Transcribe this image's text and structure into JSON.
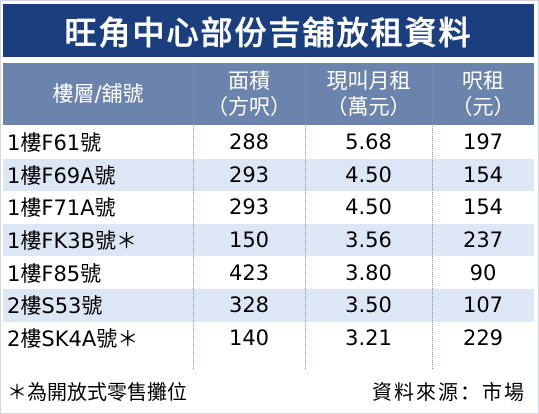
{
  "title": "旺角中心部份吉舖放租資料",
  "columns": [
    {
      "line1": "樓層/舖號",
      "line2": ""
    },
    {
      "line1": "面積",
      "line2": "（方呎）"
    },
    {
      "line1": "現叫月租",
      "line2": "（萬元）"
    },
    {
      "line1": "呎租",
      "line2": "（元）"
    }
  ],
  "rows": [
    {
      "unit": "1樓F61號",
      "area": "288",
      "rent": "5.68",
      "psf": "197"
    },
    {
      "unit": "1樓F69A號",
      "area": "293",
      "rent": "4.50",
      "psf": "154"
    },
    {
      "unit": "1樓F71A號",
      "area": "293",
      "rent": "4.50",
      "psf": "154"
    },
    {
      "unit": "1樓FK3B號＊",
      "area": "150",
      "rent": "3.56",
      "psf": "237"
    },
    {
      "unit": "1樓F85號",
      "area": "423",
      "rent": "3.80",
      "psf": "90"
    },
    {
      "unit": "2樓S53號",
      "area": "328",
      "rent": "3.50",
      "psf": "107"
    },
    {
      "unit": "2樓SK4A號＊",
      "area": "140",
      "rent": "3.21",
      "psf": "229"
    }
  ],
  "footnote": "＊為開放式零售攤位",
  "source": "資料來源：市場"
}
